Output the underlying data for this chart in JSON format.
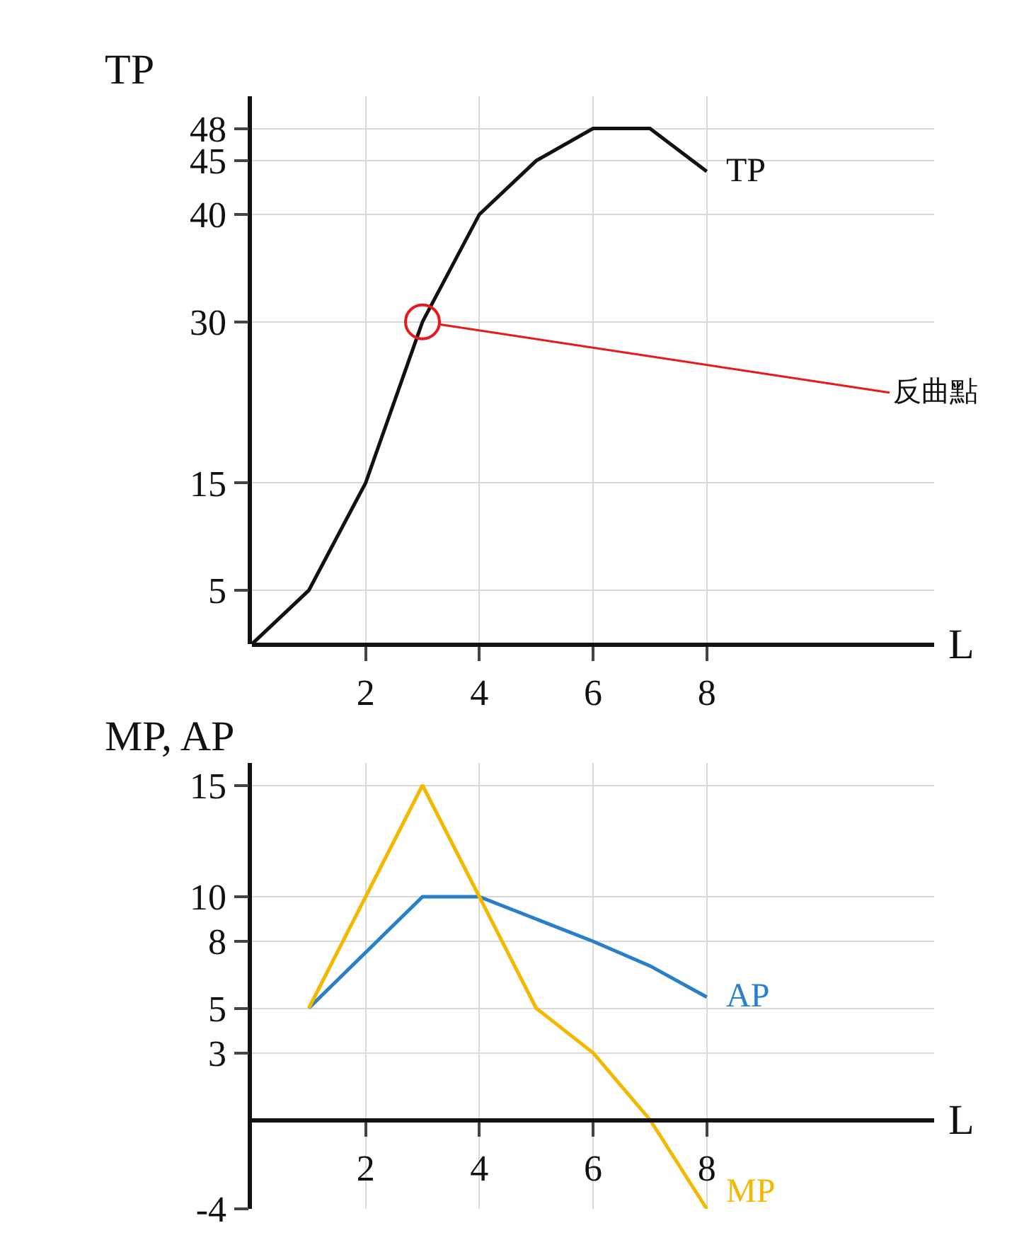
{
  "chart_data": [
    {
      "type": "line",
      "ylabel": "TP",
      "xlabel": "L",
      "x": [
        0,
        1,
        2,
        3,
        4,
        5,
        6,
        7,
        8
      ],
      "series": [
        {
          "name": "TP",
          "color": "#111111",
          "values": [
            0,
            5,
            15,
            30,
            40,
            45,
            48,
            48,
            44
          ]
        }
      ],
      "annotations": [
        {
          "text": "反曲點",
          "x": 3,
          "y": 30
        }
      ],
      "xlim": [
        0,
        12
      ],
      "ylim": [
        0,
        51
      ],
      "xticks": [
        2,
        4,
        6,
        8
      ],
      "yticks": [
        5,
        15,
        30,
        40,
        45,
        48
      ],
      "grid": true,
      "marker": "none",
      "line_style": "solid",
      "legend": false
    },
    {
      "type": "line",
      "ylabel": "MP, AP",
      "xlabel": "L",
      "x": [
        1,
        2,
        3,
        4,
        5,
        6,
        7,
        8
      ],
      "series": [
        {
          "name": "AP",
          "color": "#2a7fc9",
          "values": [
            5,
            7.5,
            10,
            10,
            9,
            8,
            6.9,
            5.5
          ]
        },
        {
          "name": "MP",
          "color": "#f2b900",
          "values": [
            5,
            10,
            15,
            10,
            5,
            3,
            0,
            -4
          ]
        }
      ],
      "xlim": [
        0,
        12
      ],
      "ylim": [
        -4,
        16
      ],
      "xticks": [
        2,
        4,
        6,
        8
      ],
      "yticks": [
        -4,
        3,
        5,
        8,
        10,
        15
      ],
      "grid": true,
      "marker": "none",
      "line_style": "solid",
      "legend": false
    }
  ]
}
